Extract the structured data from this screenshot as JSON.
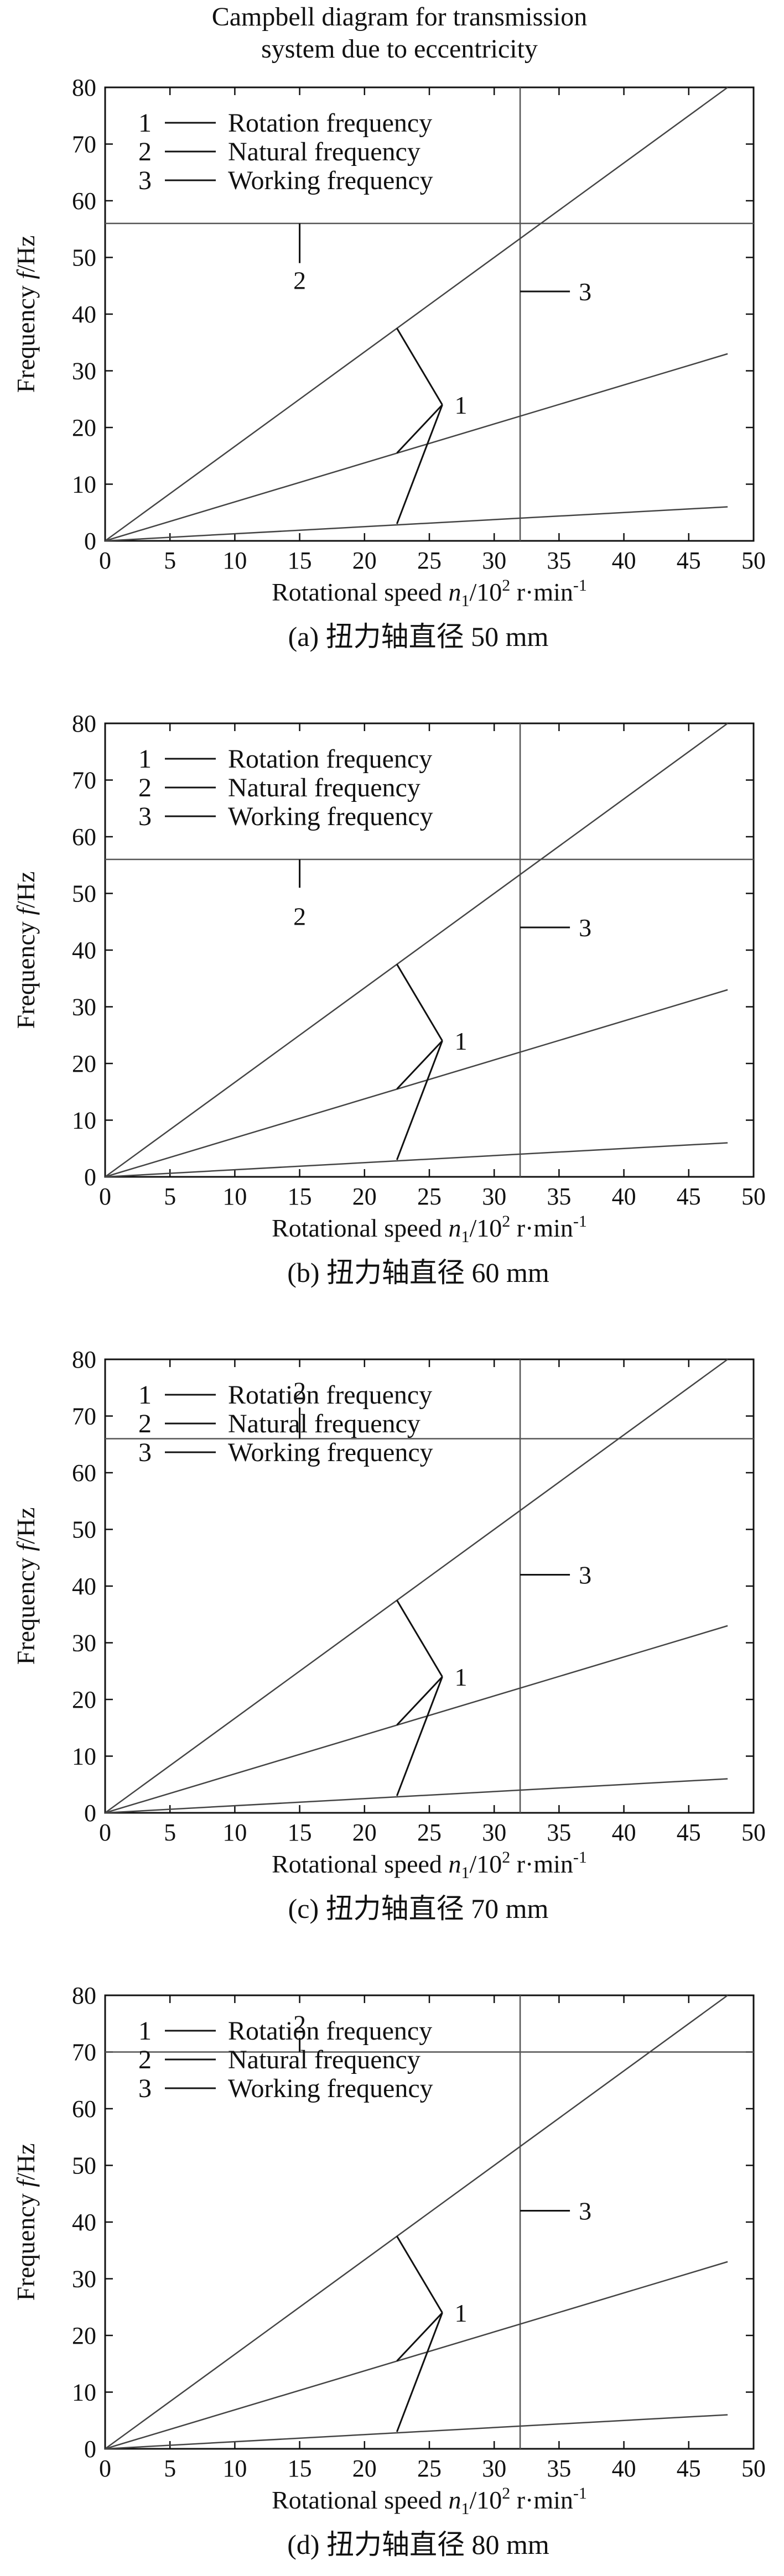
{
  "figure_title": {
    "line1": "Campbell diagram for transmission",
    "line2": "system due to eccentricity"
  },
  "chart_data": [
    {
      "type": "line",
      "caption": "(a) 扭力轴直径 50 mm",
      "xlabel": {
        "prefix": "Rotational speed ",
        "var": "n",
        "sub": "1",
        "mid": "/10",
        "sup": "2",
        "unit": " r·min",
        "unit_sup": "-1"
      },
      "ylabel": {
        "prefix": "Frequency ",
        "var": "f",
        "unit": "/Hz"
      },
      "xlim": [
        0,
        50
      ],
      "ylim": [
        0,
        80
      ],
      "xticks": [
        0,
        5,
        10,
        15,
        20,
        25,
        30,
        35,
        40,
        45,
        50
      ],
      "yticks": [
        0,
        10,
        20,
        30,
        40,
        50,
        60,
        70,
        80
      ],
      "rotation_frequency": [
        {
          "name": "rotation-line-high",
          "x": [
            0,
            48
          ],
          "y": [
            0,
            80
          ]
        },
        {
          "name": "rotation-line-mid",
          "x": [
            0,
            48
          ],
          "y": [
            0,
            33
          ]
        },
        {
          "name": "rotation-line-low",
          "x": [
            0,
            48
          ],
          "y": [
            0,
            6
          ]
        }
      ],
      "natural_frequency": 56,
      "working_speed": 32,
      "legend": [
        {
          "num": "1",
          "label": "Rotation frequency"
        },
        {
          "num": "2",
          "label": "Natural frequency"
        },
        {
          "num": "3",
          "label": "Working frequency"
        }
      ],
      "legend_position": "upper-left",
      "callouts": {
        "label1": "1",
        "label1_anchor": [
          26,
          24
        ],
        "label1_targets": [
          [
            22.5,
            37.5
          ],
          [
            22.5,
            15.5
          ],
          [
            22.5,
            3
          ]
        ],
        "label2": "2",
        "label2_anchor_x": 15,
        "label2_line_y": [
          56,
          49
        ],
        "label2_text_y": 46,
        "label3": "3",
        "label3_line_y": 44
      }
    },
    {
      "type": "line",
      "caption": "(b) 扭力轴直径 60 mm",
      "xlabel": {
        "prefix": "Rotational speed ",
        "var": "n",
        "sub": "1",
        "mid": "/10",
        "sup": "2",
        "unit": " r·min",
        "unit_sup": "-1"
      },
      "ylabel": {
        "prefix": "Frequency ",
        "var": "f",
        "unit": "/Hz"
      },
      "xlim": [
        0,
        50
      ],
      "ylim": [
        0,
        80
      ],
      "xticks": [
        0,
        5,
        10,
        15,
        20,
        25,
        30,
        35,
        40,
        45,
        50
      ],
      "yticks": [
        0,
        10,
        20,
        30,
        40,
        50,
        60,
        70,
        80
      ],
      "rotation_frequency": [
        {
          "name": "rotation-line-high",
          "x": [
            0,
            48
          ],
          "y": [
            0,
            80
          ]
        },
        {
          "name": "rotation-line-mid",
          "x": [
            0,
            48
          ],
          "y": [
            0,
            33
          ]
        },
        {
          "name": "rotation-line-low",
          "x": [
            0,
            48
          ],
          "y": [
            0,
            6
          ]
        }
      ],
      "natural_frequency": 56,
      "working_speed": 32,
      "legend": [
        {
          "num": "1",
          "label": "Rotation frequency"
        },
        {
          "num": "2",
          "label": "Natural frequency"
        },
        {
          "num": "3",
          "label": "Working frequency"
        }
      ],
      "legend_position": "upper-left",
      "callouts": {
        "label1": "1",
        "label1_anchor": [
          26,
          24
        ],
        "label1_targets": [
          [
            22.5,
            37.5
          ],
          [
            22.5,
            15.5
          ],
          [
            22.5,
            3
          ]
        ],
        "label2": "2",
        "label2_anchor_x": 15,
        "label2_line_y": [
          56,
          51
        ],
        "label2_text_y": 46,
        "label3": "3",
        "label3_line_y": 44
      }
    },
    {
      "type": "line",
      "caption": "(c) 扭力轴直径 70 mm",
      "xlabel": {
        "prefix": "Rotational speed ",
        "var": "n",
        "sub": "1",
        "mid": "/10",
        "sup": "2",
        "unit": " r·min",
        "unit_sup": "-1"
      },
      "ylabel": {
        "prefix": "Frequency ",
        "var": "f",
        "unit": "/Hz"
      },
      "xlim": [
        0,
        50
      ],
      "ylim": [
        0,
        80
      ],
      "xticks": [
        0,
        5,
        10,
        15,
        20,
        25,
        30,
        35,
        40,
        45,
        50
      ],
      "yticks": [
        0,
        10,
        20,
        30,
        40,
        50,
        60,
        70,
        80
      ],
      "rotation_frequency": [
        {
          "name": "rotation-line-high",
          "x": [
            0,
            48
          ],
          "y": [
            0,
            80
          ]
        },
        {
          "name": "rotation-line-mid",
          "x": [
            0,
            48
          ],
          "y": [
            0,
            33
          ]
        },
        {
          "name": "rotation-line-low",
          "x": [
            0,
            48
          ],
          "y": [
            0,
            6
          ]
        }
      ],
      "natural_frequency": 66,
      "working_speed": 32,
      "legend": [
        {
          "num": "1",
          "label": "Rotation frequency"
        },
        {
          "num": "2",
          "label": "Natural frequency"
        },
        {
          "num": "3",
          "label": "Working frequency"
        }
      ],
      "legend_position": "upper-left",
      "callouts": {
        "label1": "1",
        "label1_anchor": [
          26,
          24
        ],
        "label1_targets": [
          [
            22.5,
            37.5
          ],
          [
            22.5,
            15.5
          ],
          [
            22.5,
            3
          ]
        ],
        "label2": "2",
        "label2_anchor_x": 15,
        "label2_line_y": [
          66,
          71.5
        ],
        "label2_text_y": 74.5,
        "label3": "3",
        "label3_line_y": 42
      }
    },
    {
      "type": "line",
      "caption": "(d) 扭力轴直径 80 mm",
      "xlabel": {
        "prefix": "Rotational speed ",
        "var": "n",
        "sub": "1",
        "mid": "/10",
        "sup": "2",
        "unit": " r·min",
        "unit_sup": "-1"
      },
      "ylabel": {
        "prefix": "Frequency ",
        "var": "f",
        "unit": "/Hz"
      },
      "xlim": [
        0,
        50
      ],
      "ylim": [
        0,
        80
      ],
      "xticks": [
        0,
        5,
        10,
        15,
        20,
        25,
        30,
        35,
        40,
        45,
        50
      ],
      "yticks": [
        0,
        10,
        20,
        30,
        40,
        50,
        60,
        70,
        80
      ],
      "rotation_frequency": [
        {
          "name": "rotation-line-high",
          "x": [
            0,
            48
          ],
          "y": [
            0,
            80
          ]
        },
        {
          "name": "rotation-line-mid",
          "x": [
            0,
            48
          ],
          "y": [
            0,
            33
          ]
        },
        {
          "name": "rotation-line-low",
          "x": [
            0,
            48
          ],
          "y": [
            0,
            6
          ]
        }
      ],
      "natural_frequency": 70,
      "working_speed": 32,
      "legend": [
        {
          "num": "1",
          "label": "Rotation frequency"
        },
        {
          "num": "2",
          "label": "Natural frequency"
        },
        {
          "num": "3",
          "label": "Working frequency"
        }
      ],
      "legend_position": "upper-left",
      "callouts": {
        "label1": "1",
        "label1_anchor": [
          26,
          24
        ],
        "label1_targets": [
          [
            22.5,
            37.5
          ],
          [
            22.5,
            15.5
          ],
          [
            22.5,
            3
          ]
        ],
        "label2": "2",
        "label2_anchor_x": 15,
        "label2_line_y": [
          70,
          72.5
        ],
        "label2_text_y": 75,
        "label3": "3",
        "label3_line_y": 42
      }
    }
  ]
}
